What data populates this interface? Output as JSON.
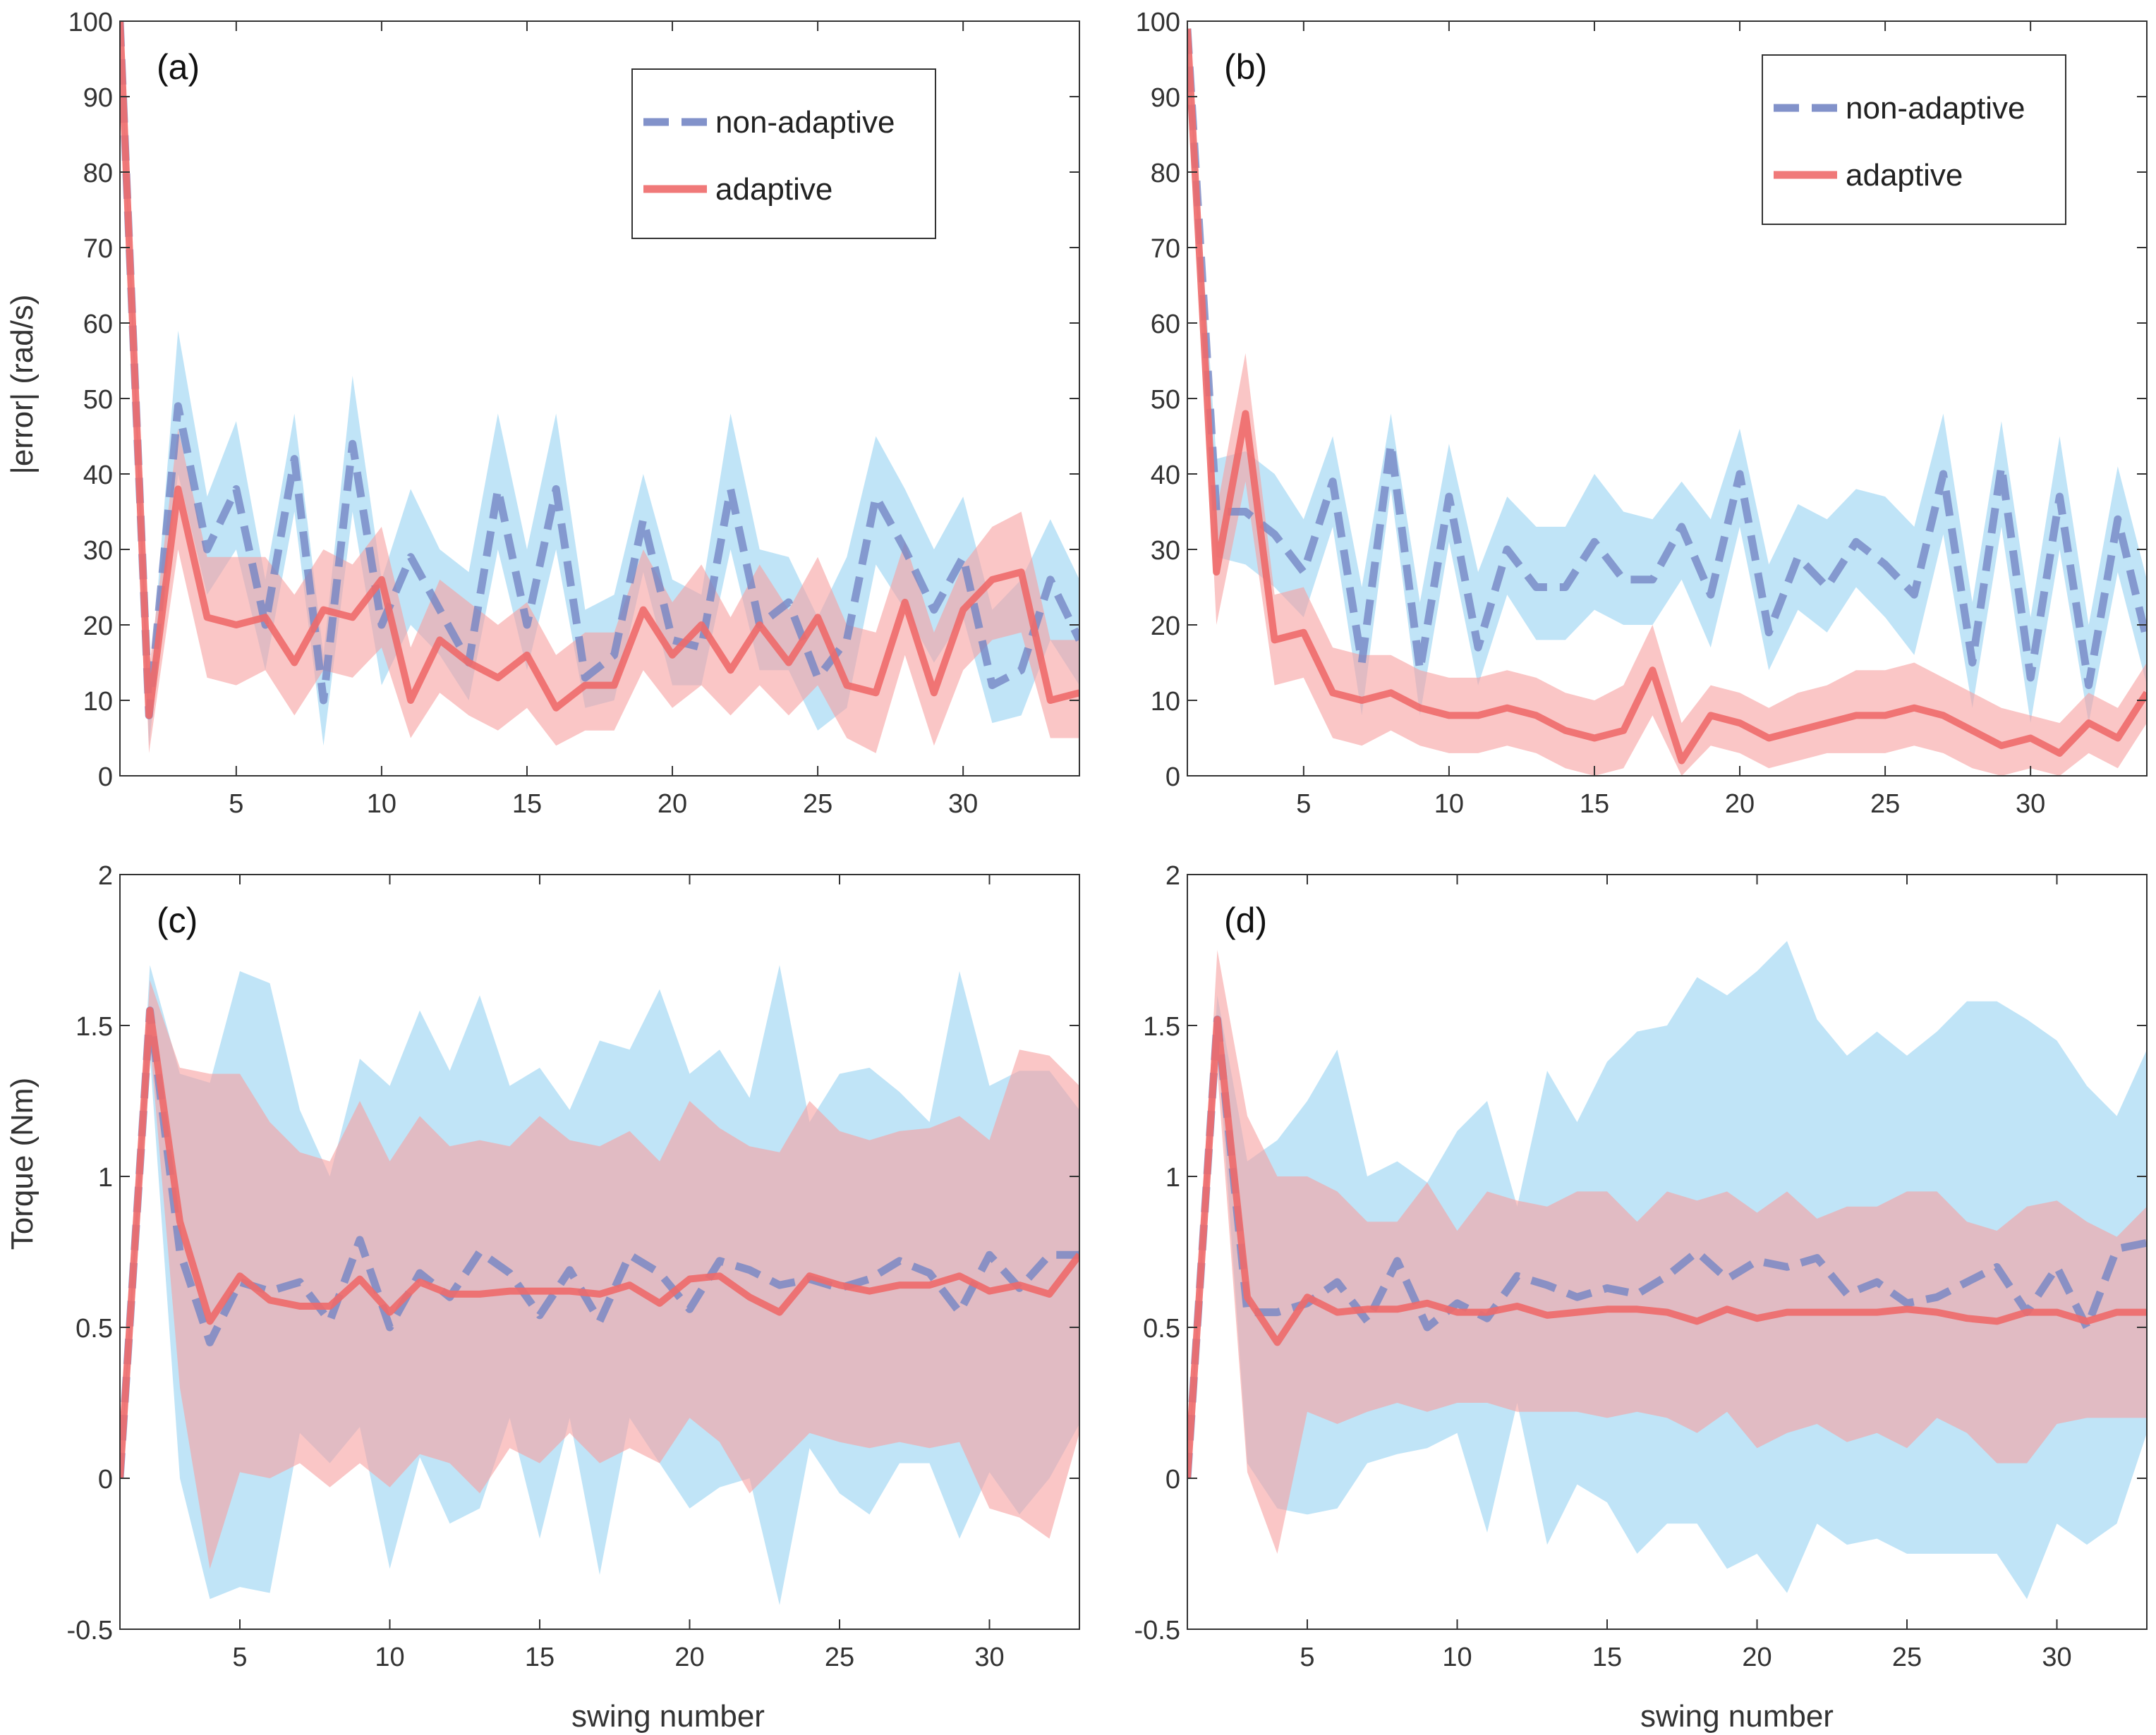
{
  "figure": {
    "title": "",
    "xlabel": "swing number",
    "ylabel_top": "|error| (rad/s)",
    "ylabel_bottom": "Torque (Nm)"
  },
  "colors": {
    "non_adaptive_line": "#7486c4",
    "non_adaptive_band": "#8ccdf0",
    "adaptive_line": "#ee6a6a",
    "adaptive_band": "#f6a0a0",
    "axis": "#333333",
    "background": "#ffffff"
  },
  "chart_data": [
    {
      "id": "a",
      "panel_label": "(a)",
      "type": "line",
      "xlim": [
        1,
        34
      ],
      "ylim": [
        0,
        100
      ],
      "xticks": [
        5,
        10,
        15,
        20,
        25,
        30
      ],
      "yticks": [
        0,
        10,
        20,
        30,
        40,
        50,
        60,
        70,
        80,
        90,
        100
      ],
      "legend": {
        "position": "top-right",
        "entries": [
          "non-adaptive",
          "adaptive"
        ]
      },
      "x": [
        1,
        2,
        3,
        4,
        5,
        6,
        7,
        8,
        9,
        10,
        11,
        12,
        13,
        14,
        15,
        16,
        17,
        18,
        19,
        20,
        21,
        22,
        23,
        24,
        25,
        26,
        27,
        28,
        29,
        30,
        31,
        32,
        33,
        34
      ],
      "series": [
        {
          "name": "non-adaptive",
          "style": "dashed",
          "values": [
            100,
            8,
            49,
            30,
            38,
            20,
            42,
            10,
            44,
            20,
            29,
            22,
            15,
            38,
            20,
            38,
            13,
            16,
            34,
            18,
            17,
            38,
            20,
            23,
            13,
            18,
            37,
            30,
            22,
            29,
            12,
            14,
            26,
            18
          ],
          "upper": [
            100,
            10,
            59,
            37,
            47,
            26,
            48,
            16,
            53,
            26,
            38,
            30,
            27,
            48,
            30,
            48,
            22,
            24,
            40,
            26,
            24,
            48,
            30,
            29,
            21,
            29,
            45,
            38,
            30,
            37,
            22,
            26,
            34,
            26
          ],
          "lower": [
            100,
            4,
            40,
            24,
            30,
            14,
            35,
            4,
            35,
            12,
            20,
            16,
            10,
            30,
            14,
            30,
            9,
            10,
            27,
            12,
            12,
            30,
            14,
            14,
            6,
            9,
            28,
            22,
            15,
            21,
            7,
            8,
            18,
            12
          ]
        },
        {
          "name": "adaptive",
          "style": "solid",
          "values": [
            100,
            8,
            38,
            21,
            20,
            21,
            15,
            22,
            21,
            26,
            10,
            18,
            15,
            13,
            16,
            9,
            12,
            12,
            22,
            16,
            20,
            14,
            20,
            15,
            21,
            12,
            11,
            23,
            11,
            22,
            26,
            27,
            10,
            11
          ],
          "upper": [
            100,
            14,
            46,
            29,
            29,
            29,
            24,
            30,
            28,
            33,
            17,
            26,
            23,
            20,
            23,
            16,
            19,
            19,
            30,
            23,
            28,
            21,
            28,
            22,
            29,
            20,
            19,
            31,
            19,
            28,
            33,
            35,
            18,
            18
          ],
          "lower": [
            100,
            3,
            30,
            13,
            12,
            14,
            8,
            14,
            13,
            17,
            5,
            11,
            8,
            6,
            9,
            4,
            6,
            6,
            14,
            9,
            12,
            8,
            12,
            8,
            12,
            5,
            3,
            16,
            4,
            14,
            18,
            19,
            5,
            5
          ]
        }
      ]
    },
    {
      "id": "b",
      "panel_label": "(b)",
      "type": "line",
      "xlim": [
        1,
        34
      ],
      "ylim": [
        0,
        100
      ],
      "xticks": [
        5,
        10,
        15,
        20,
        25,
        30
      ],
      "yticks": [
        0,
        10,
        20,
        30,
        40,
        50,
        60,
        70,
        80,
        90,
        100
      ],
      "legend": {
        "position": "top-right",
        "entries": [
          "non-adaptive",
          "adaptive"
        ]
      },
      "x": [
        1,
        2,
        3,
        4,
        5,
        6,
        7,
        8,
        9,
        10,
        11,
        12,
        13,
        14,
        15,
        16,
        17,
        18,
        19,
        20,
        21,
        22,
        23,
        24,
        25,
        26,
        27,
        28,
        29,
        30,
        31,
        32,
        33,
        34
      ],
      "series": [
        {
          "name": "non-adaptive",
          "style": "dashed",
          "values": [
            99,
            35,
            35,
            32,
            27,
            39,
            15,
            44,
            14,
            37,
            17,
            30,
            25,
            25,
            31,
            26,
            26,
            33,
            24,
            40,
            19,
            29,
            25,
            31,
            28,
            24,
            40,
            15,
            41,
            13,
            37,
            12,
            34,
            18
          ],
          "upper": [
            99,
            42,
            43,
            40,
            34,
            45,
            25,
            48,
            23,
            44,
            27,
            37,
            33,
            33,
            40,
            35,
            34,
            39,
            34,
            46,
            28,
            36,
            34,
            38,
            37,
            33,
            48,
            23,
            47,
            21,
            45,
            20,
            41,
            26
          ],
          "lower": [
            99,
            29,
            28,
            25,
            21,
            33,
            8,
            38,
            8,
            31,
            12,
            24,
            18,
            18,
            22,
            20,
            20,
            26,
            17,
            33,
            14,
            22,
            19,
            25,
            21,
            16,
            32,
            9,
            33,
            7,
            30,
            7,
            27,
            12
          ]
        },
        {
          "name": "adaptive",
          "style": "solid",
          "values": [
            99,
            27,
            48,
            18,
            19,
            11,
            10,
            11,
            9,
            8,
            8,
            9,
            8,
            6,
            5,
            6,
            14,
            2,
            8,
            7,
            5,
            6,
            7,
            8,
            8,
            9,
            8,
            6,
            4,
            5,
            3,
            7,
            5,
            11
          ],
          "upper": [
            99,
            35,
            56,
            24,
            25,
            17,
            16,
            16,
            14,
            13,
            13,
            14,
            13,
            11,
            10,
            12,
            20,
            7,
            12,
            11,
            9,
            11,
            12,
            14,
            14,
            15,
            13,
            11,
            9,
            8,
            7,
            11,
            9,
            15
          ],
          "lower": [
            99,
            20,
            39,
            12,
            13,
            5,
            4,
            6,
            4,
            3,
            3,
            4,
            3,
            1,
            0,
            1,
            8,
            0,
            4,
            3,
            1,
            2,
            3,
            3,
            3,
            4,
            3,
            1,
            0,
            1,
            0,
            3,
            1,
            7
          ]
        }
      ]
    },
    {
      "id": "c",
      "panel_label": "(c)",
      "type": "line",
      "xlim": [
        1,
        33
      ],
      "ylim": [
        -0.5,
        2
      ],
      "xticks": [
        5,
        10,
        15,
        20,
        25,
        30
      ],
      "yticks": [
        -0.5,
        0,
        0.5,
        1,
        1.5,
        2
      ],
      "x": [
        1,
        2,
        3,
        4,
        5,
        6,
        7,
        8,
        9,
        10,
        11,
        12,
        13,
        14,
        15,
        16,
        17,
        18,
        19,
        20,
        21,
        22,
        23,
        24,
        25,
        26,
        27,
        28,
        29,
        30,
        31,
        32,
        33
      ],
      "series": [
        {
          "name": "non-adaptive",
          "style": "dashed",
          "values": [
            0,
            1.55,
            0.75,
            0.45,
            0.65,
            0.62,
            0.65,
            0.52,
            0.79,
            0.5,
            0.68,
            0.6,
            0.75,
            0.68,
            0.54,
            0.69,
            0.52,
            0.74,
            0.68,
            0.56,
            0.72,
            0.69,
            0.64,
            0.66,
            0.63,
            0.66,
            0.72,
            0.68,
            0.55,
            0.74,
            0.63,
            0.74,
            0.74
          ],
          "upper": [
            0,
            1.7,
            1.34,
            1.31,
            1.68,
            1.64,
            1.22,
            1.0,
            1.39,
            1.3,
            1.55,
            1.35,
            1.6,
            1.3,
            1.36,
            1.22,
            1.45,
            1.42,
            1.62,
            1.34,
            1.42,
            1.26,
            1.7,
            1.18,
            1.34,
            1.36,
            1.28,
            1.18,
            1.68,
            1.3,
            1.35,
            1.35,
            1.22
          ],
          "lower": [
            0,
            1.4,
            0.0,
            -0.4,
            -0.36,
            -0.38,
            0.15,
            0.05,
            0.17,
            -0.3,
            0.07,
            -0.15,
            -0.1,
            0.2,
            -0.2,
            0.2,
            -0.32,
            0.2,
            0.05,
            -0.1,
            -0.03,
            0.0,
            -0.42,
            0.1,
            -0.05,
            -0.12,
            0.05,
            0.05,
            -0.2,
            0.02,
            -0.12,
            0.0,
            0.18
          ]
        },
        {
          "name": "adaptive",
          "style": "solid",
          "values": [
            0,
            1.55,
            0.85,
            0.52,
            0.67,
            0.59,
            0.57,
            0.57,
            0.66,
            0.55,
            0.65,
            0.61,
            0.61,
            0.62,
            0.62,
            0.62,
            0.61,
            0.64,
            0.58,
            0.66,
            0.67,
            0.6,
            0.55,
            0.67,
            0.64,
            0.62,
            0.64,
            0.64,
            0.67,
            0.62,
            0.64,
            0.61,
            0.74
          ],
          "upper": [
            0,
            1.65,
            1.36,
            1.34,
            1.34,
            1.18,
            1.08,
            1.05,
            1.25,
            1.05,
            1.2,
            1.1,
            1.12,
            1.1,
            1.2,
            1.12,
            1.1,
            1.15,
            1.05,
            1.25,
            1.16,
            1.1,
            1.08,
            1.25,
            1.15,
            1.12,
            1.15,
            1.16,
            1.2,
            1.12,
            1.42,
            1.4,
            1.3
          ],
          "lower": [
            0,
            1.45,
            0.3,
            -0.3,
            0.02,
            0.0,
            0.05,
            -0.03,
            0.05,
            -0.03,
            0.08,
            0.05,
            -0.05,
            0.1,
            0.05,
            0.15,
            0.05,
            0.1,
            0.05,
            0.2,
            0.12,
            -0.05,
            0.05,
            0.15,
            0.12,
            0.1,
            0.12,
            0.1,
            0.12,
            -0.1,
            -0.13,
            -0.2,
            0.15
          ]
        }
      ]
    },
    {
      "id": "d",
      "panel_label": "(d)",
      "type": "line",
      "xlim": [
        1,
        33
      ],
      "ylim": [
        -0.5,
        2
      ],
      "xticks": [
        5,
        10,
        15,
        20,
        25,
        30
      ],
      "yticks": [
        -0.5,
        0,
        0.5,
        1,
        1.5,
        2
      ],
      "x": [
        1,
        2,
        3,
        4,
        5,
        6,
        7,
        8,
        9,
        10,
        11,
        12,
        13,
        14,
        15,
        16,
        17,
        18,
        19,
        20,
        21,
        22,
        23,
        24,
        25,
        26,
        27,
        28,
        29,
        30,
        31,
        32,
        33
      ],
      "series": [
        {
          "name": "non-adaptive",
          "style": "dashed",
          "values": [
            0,
            1.52,
            0.55,
            0.55,
            0.58,
            0.65,
            0.52,
            0.72,
            0.5,
            0.58,
            0.53,
            0.67,
            0.64,
            0.6,
            0.63,
            0.61,
            0.67,
            0.75,
            0.66,
            0.72,
            0.7,
            0.73,
            0.61,
            0.65,
            0.58,
            0.6,
            0.65,
            0.7,
            0.55,
            0.7,
            0.5,
            0.76,
            0.78
          ],
          "upper": [
            0,
            1.6,
            1.05,
            1.12,
            1.25,
            1.42,
            1.0,
            1.05,
            0.98,
            1.15,
            1.25,
            0.9,
            1.35,
            1.18,
            1.38,
            1.48,
            1.5,
            1.66,
            1.6,
            1.68,
            1.78,
            1.52,
            1.4,
            1.48,
            1.4,
            1.48,
            1.58,
            1.58,
            1.52,
            1.45,
            1.3,
            1.2,
            1.42
          ],
          "lower": [
            0,
            1.45,
            0.05,
            -0.1,
            -0.12,
            -0.1,
            0.05,
            0.08,
            0.1,
            0.15,
            -0.18,
            0.25,
            -0.22,
            -0.02,
            -0.08,
            -0.25,
            -0.15,
            -0.15,
            -0.3,
            -0.25,
            -0.38,
            -0.15,
            -0.22,
            -0.2,
            -0.25,
            -0.25,
            -0.25,
            -0.25,
            -0.4,
            -0.15,
            -0.22,
            -0.15,
            0.15
          ]
        },
        {
          "name": "adaptive",
          "style": "solid",
          "values": [
            0,
            1.52,
            0.6,
            0.45,
            0.6,
            0.55,
            0.56,
            0.56,
            0.58,
            0.55,
            0.55,
            0.57,
            0.54,
            0.55,
            0.56,
            0.56,
            0.55,
            0.52,
            0.56,
            0.53,
            0.55,
            0.55,
            0.55,
            0.55,
            0.56,
            0.55,
            0.53,
            0.52,
            0.55,
            0.55,
            0.52,
            0.55,
            0.55
          ],
          "upper": [
            0,
            1.75,
            1.2,
            1.0,
            1.0,
            0.95,
            0.85,
            0.85,
            0.98,
            0.82,
            0.95,
            0.92,
            0.9,
            0.95,
            0.95,
            0.85,
            0.95,
            0.92,
            0.95,
            0.88,
            0.95,
            0.86,
            0.9,
            0.9,
            0.95,
            0.95,
            0.85,
            0.82,
            0.9,
            0.92,
            0.85,
            0.8,
            0.9
          ],
          "lower": [
            0,
            1.35,
            0.02,
            -0.25,
            0.22,
            0.18,
            0.22,
            0.25,
            0.22,
            0.25,
            0.25,
            0.22,
            0.22,
            0.22,
            0.2,
            0.22,
            0.2,
            0.15,
            0.22,
            0.1,
            0.15,
            0.18,
            0.12,
            0.15,
            0.1,
            0.2,
            0.15,
            0.05,
            0.05,
            0.18,
            0.2,
            0.2,
            0.2
          ]
        }
      ]
    }
  ]
}
